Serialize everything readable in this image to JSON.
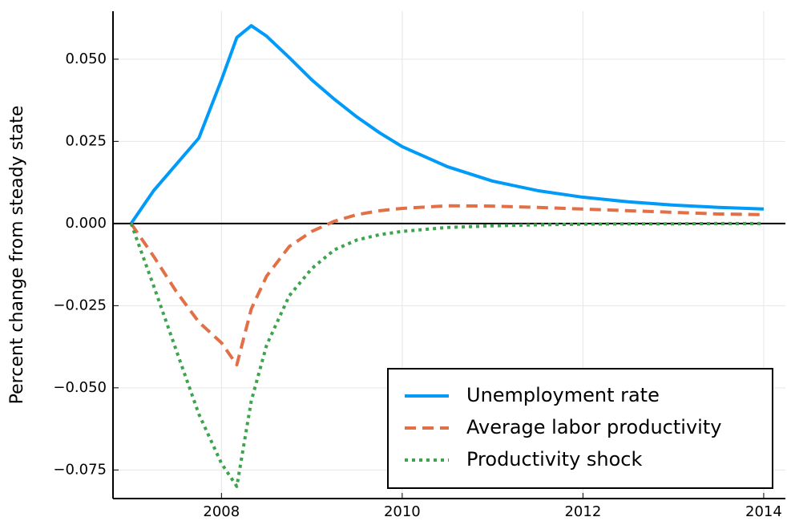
{
  "chart_data": {
    "type": "line",
    "y_label": "Percent change from steady state",
    "x": [
      2007,
      2007.25,
      2007.5,
      2007.75,
      2008,
      2008.17,
      2008.33,
      2008.5,
      2008.75,
      2009,
      2009.25,
      2009.5,
      2009.75,
      2010,
      2010.5,
      2011,
      2011.5,
      2012,
      2012.5,
      2013,
      2013.5,
      2014
    ],
    "series": [
      {
        "name": "Unemployment rate",
        "color": "#009af9",
        "dash": "solid",
        "values": [
          0,
          0.01,
          0.018,
          0.026,
          0.0437,
          0.0566,
          0.0602,
          0.057,
          0.0505,
          0.0437,
          0.0378,
          0.0324,
          0.0276,
          0.0234,
          0.0173,
          0.0129,
          0.01,
          0.008,
          0.0066,
          0.0056,
          0.0049,
          0.0044
        ]
      },
      {
        "name": "Average labor productivity",
        "color": "#e26f46",
        "dash": "dashed",
        "values": [
          0,
          -0.01,
          -0.0207,
          -0.03,
          -0.0363,
          -0.043,
          -0.026,
          -0.016,
          -0.007,
          -0.0024,
          0.0007,
          0.0027,
          0.0039,
          0.0046,
          0.0054,
          0.0053,
          0.0049,
          0.0044,
          0.0039,
          0.0034,
          0.0029,
          0.0027
        ]
      },
      {
        "name": "Productivity shock",
        "color": "#3da44d",
        "dash": "dotted",
        "values": [
          0,
          -0.019,
          -0.0386,
          -0.058,
          -0.073,
          -0.08,
          -0.054,
          -0.037,
          -0.022,
          -0.0137,
          -0.008,
          -0.005,
          -0.0034,
          -0.0024,
          -0.0012,
          -0.0007,
          -0.0004,
          -0.0002,
          -0.0001,
          -0.0001,
          0,
          0
        ]
      }
    ],
    "xlim": [
      2006.8,
      2014.24
    ],
    "xticks": [
      2008,
      2010,
      2012,
      2014
    ],
    "ylim": [
      -0.0837,
      0.0646
    ],
    "yticks": [
      {
        "value": -0.075,
        "label": "−0.075"
      },
      {
        "value": -0.05,
        "label": "−0.050"
      },
      {
        "value": -0.025,
        "label": "−0.025"
      },
      {
        "value": 0,
        "label": "0.000"
      },
      {
        "value": 0.025,
        "label": "0.025"
      },
      {
        "value": 0.05,
        "label": "0.050"
      }
    ],
    "grid": true,
    "zero_line": true,
    "legend_position": "bottom-right"
  }
}
